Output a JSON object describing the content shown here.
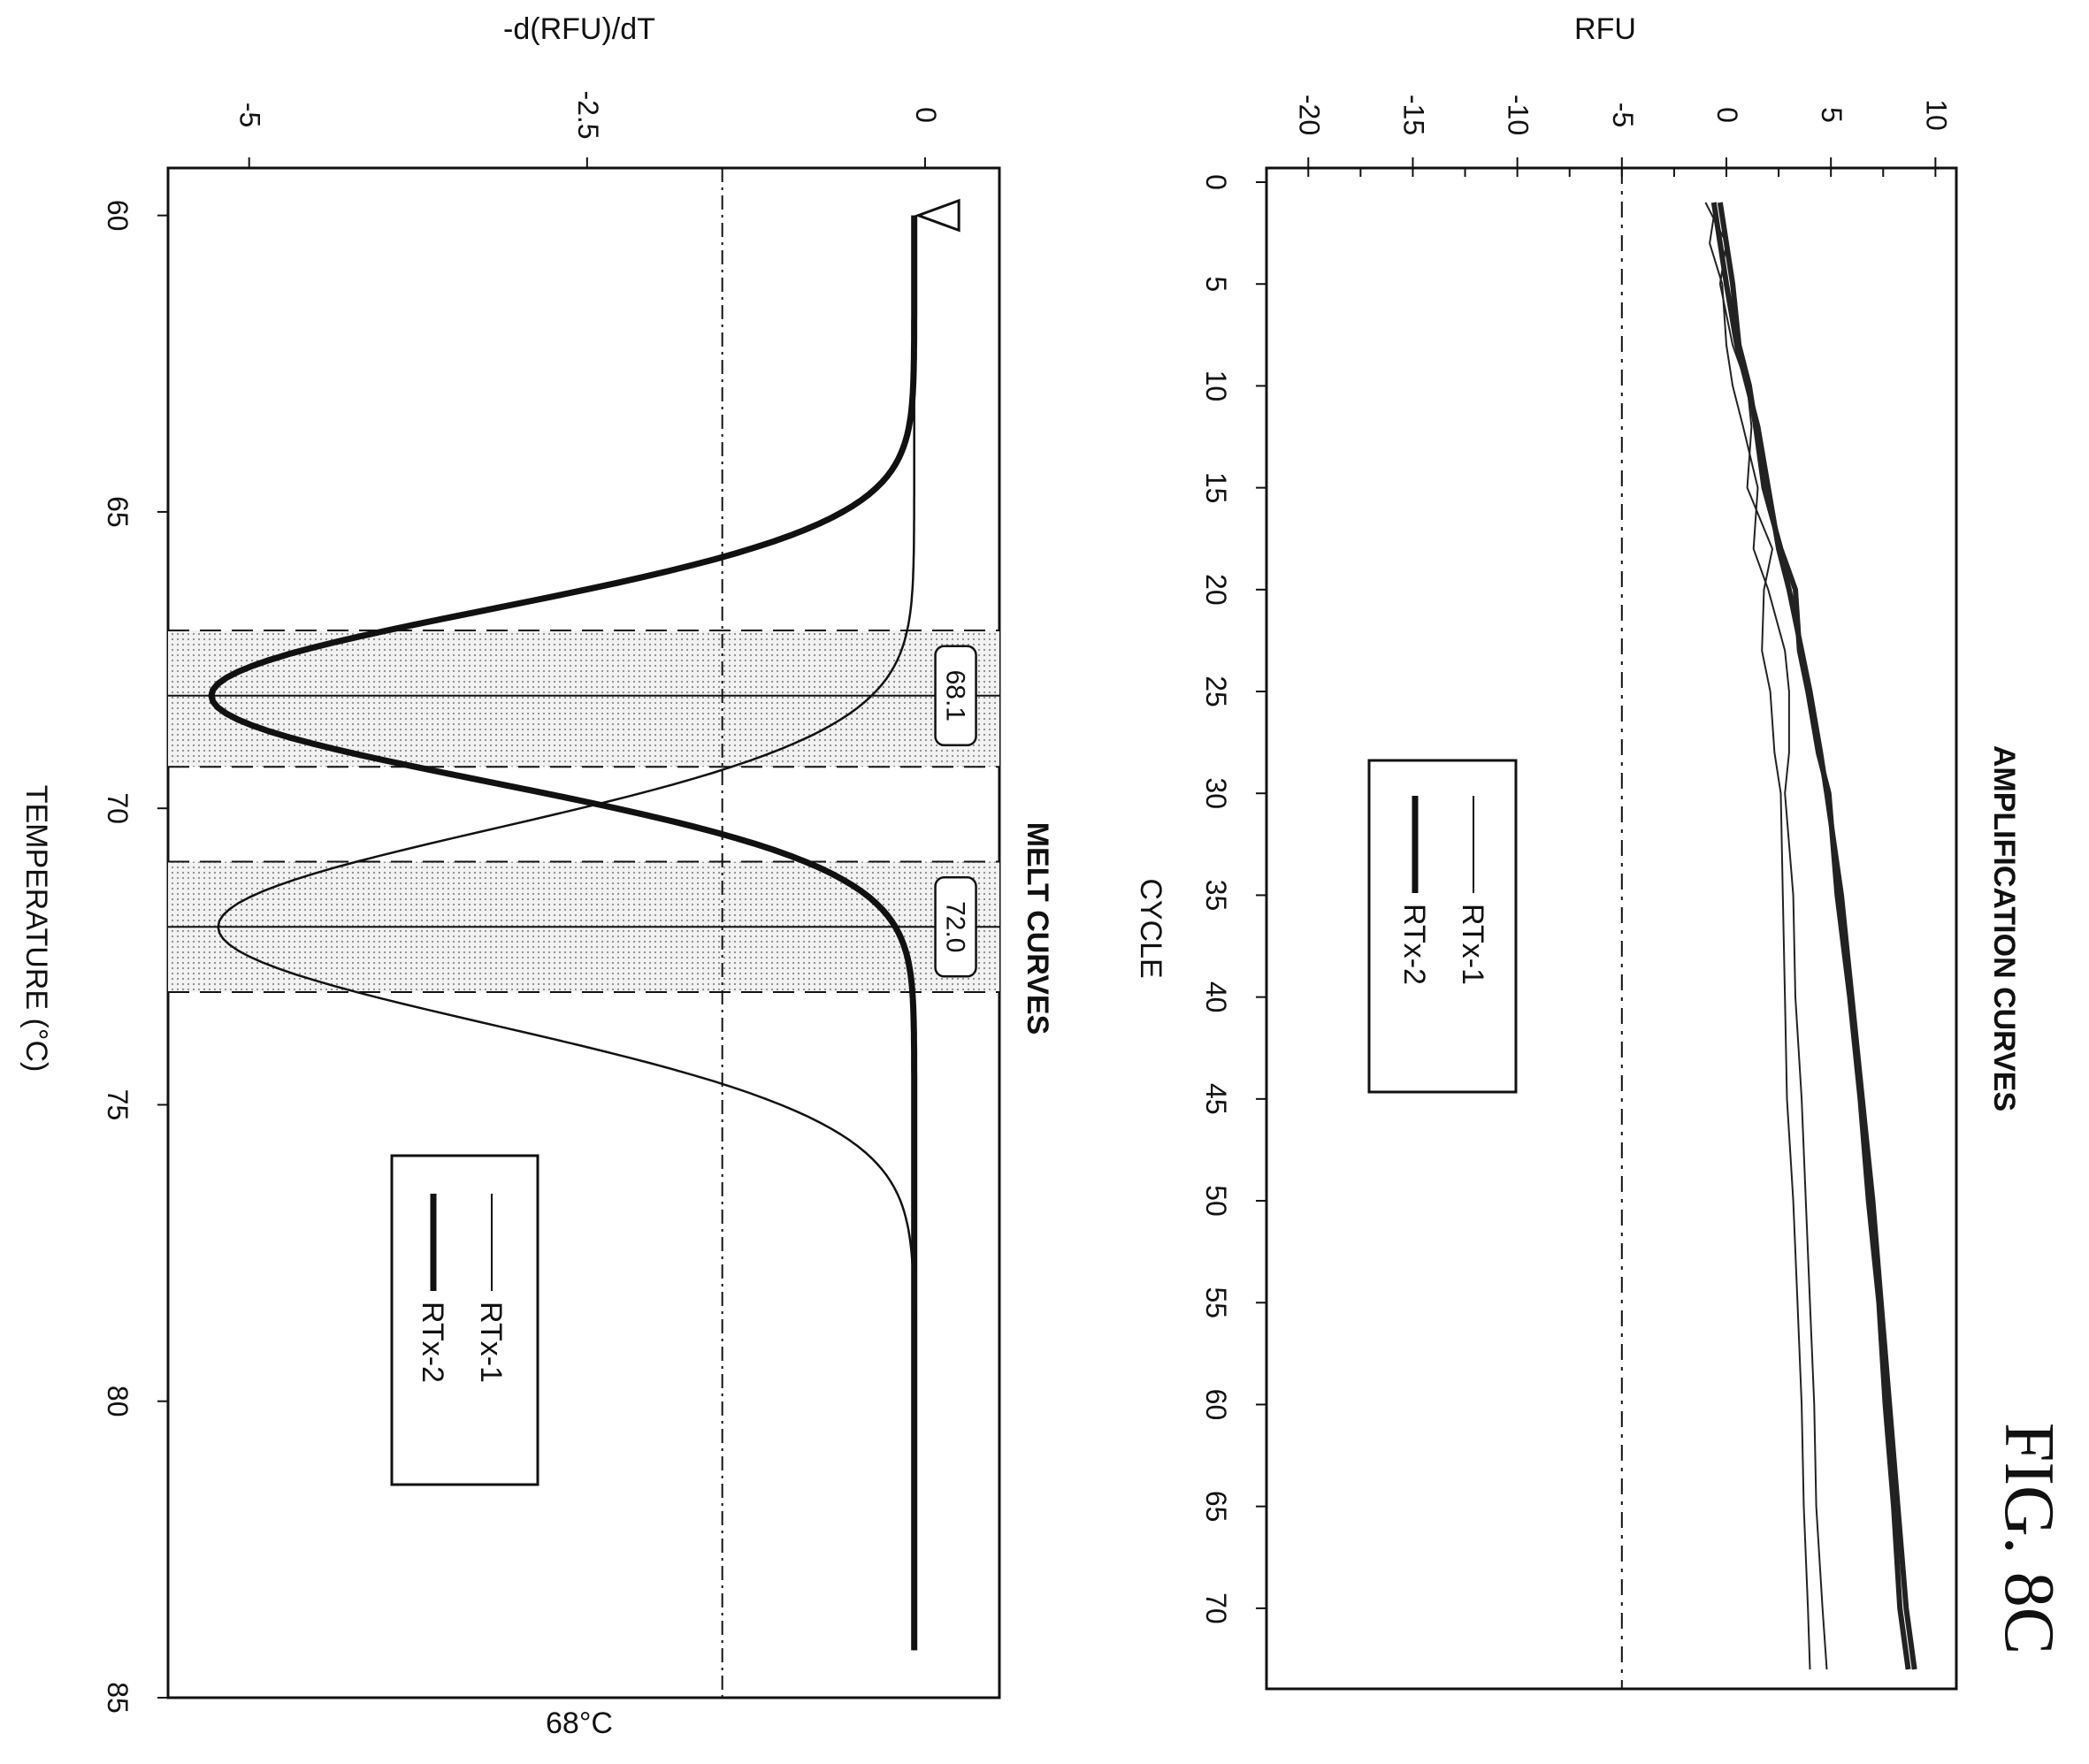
{
  "figure_label": "FIG. 8C",
  "chart_data": [
    {
      "id": "amplification",
      "type": "line",
      "title": "AMPLIFICATION CURVES",
      "xlabel": "CYCLE",
      "ylabel": "RFU",
      "xlim": [
        0,
        73
      ],
      "ylim": [
        -22,
        11
      ],
      "xticks": [
        0,
        5,
        10,
        15,
        20,
        25,
        30,
        35,
        40,
        45,
        50,
        55,
        60,
        65,
        70
      ],
      "yticks": [
        -20,
        -15,
        -10,
        -5,
        0,
        5,
        10
      ],
      "threshold": -5,
      "legend": {
        "placement": "upper-left",
        "entries": [
          "RTx-1",
          "RTx-2"
        ]
      },
      "series": [
        {
          "name": "RTx-1",
          "stroke": "thin",
          "color": "#222222",
          "x": [
            1,
            3,
            5,
            8,
            10,
            12,
            15,
            18,
            20,
            23,
            25,
            28,
            30,
            35,
            40,
            45,
            50,
            55,
            60,
            65,
            70,
            73
          ],
          "y": [
            -0.5,
            -0.8,
            -0.2,
            0.0,
            0.3,
            0.8,
            1.5,
            1.3,
            2.0,
            2.8,
            3.0,
            3.0,
            2.8,
            3.2,
            3.3,
            3.6,
            3.8,
            4.0,
            4.2,
            4.3,
            4.6,
            4.8
          ]
        },
        {
          "name": "RTx-1",
          "stroke": "thin",
          "color": "#222222",
          "x": [
            1,
            3,
            5,
            8,
            10,
            12,
            15,
            18,
            20,
            23,
            25,
            28,
            30,
            35,
            40,
            45,
            50,
            55,
            60,
            65,
            70,
            73
          ],
          "y": [
            -1.0,
            0.0,
            -0.3,
            0.3,
            1.0,
            1.2,
            1.0,
            2.2,
            1.8,
            1.7,
            2.1,
            2.3,
            2.6,
            2.7,
            2.8,
            2.9,
            3.2,
            3.4,
            3.6,
            3.7,
            3.9,
            4.0
          ]
        },
        {
          "name": "RTx-2",
          "stroke": "thick",
          "color": "#222222",
          "x": [
            1,
            3,
            5,
            8,
            10,
            12,
            15,
            18,
            20,
            23,
            25,
            28,
            30,
            35,
            40,
            45,
            50,
            55,
            60,
            65,
            70,
            73
          ],
          "y": [
            -0.6,
            -0.3,
            0.0,
            0.5,
            1.0,
            1.5,
            2.0,
            2.5,
            3.0,
            3.6,
            4.0,
            4.5,
            4.8,
            5.5,
            6.0,
            6.5,
            7.0,
            7.4,
            7.8,
            8.2,
            8.6,
            9.0
          ]
        },
        {
          "name": "RTx-2",
          "stroke": "thick",
          "color": "#222222",
          "x": [
            1,
            3,
            5,
            8,
            10,
            12,
            15,
            18,
            20,
            23,
            25,
            28,
            30,
            35,
            40,
            45,
            50,
            55,
            60,
            65,
            70,
            73
          ],
          "y": [
            -0.3,
            0.0,
            0.3,
            0.6,
            1.1,
            1.4,
            1.8,
            2.6,
            3.3,
            3.5,
            3.9,
            4.4,
            4.9,
            5.3,
            5.9,
            6.4,
            6.8,
            7.3,
            7.6,
            8.0,
            8.3,
            8.7
          ]
        }
      ]
    },
    {
      "id": "melt",
      "type": "line",
      "title": "MELT CURVES",
      "xlabel": "TEMPERATURE (°C)",
      "ylabel": "-d(RFU)/dT",
      "bottom_label": "68°C",
      "xlim": [
        59.2,
        85
      ],
      "ylim": [
        -5.6,
        0.55
      ],
      "xticks": [
        60,
        65,
        70,
        75,
        80,
        85
      ],
      "yticks": [
        0,
        -2.5,
        -5
      ],
      "ytick_labels": [
        "0",
        "-2.5",
        "-5"
      ],
      "threshold": -1.5,
      "legend": {
        "placement": "lower-right",
        "entries": [
          "RTx-1",
          "RTx-2"
        ]
      },
      "peak_labels": [
        "68.1",
        "72.0"
      ],
      "peaks": [
        {
          "series": "RTx-2",
          "temp": 68.1,
          "depth": -5.2,
          "sigma": 1.45,
          "band": [
            67.0,
            69.3
          ]
        },
        {
          "series": "RTx-1",
          "temp": 72.0,
          "depth": -5.15,
          "sigma": 1.65,
          "band": [
            70.9,
            73.1
          ]
        }
      ]
    }
  ]
}
